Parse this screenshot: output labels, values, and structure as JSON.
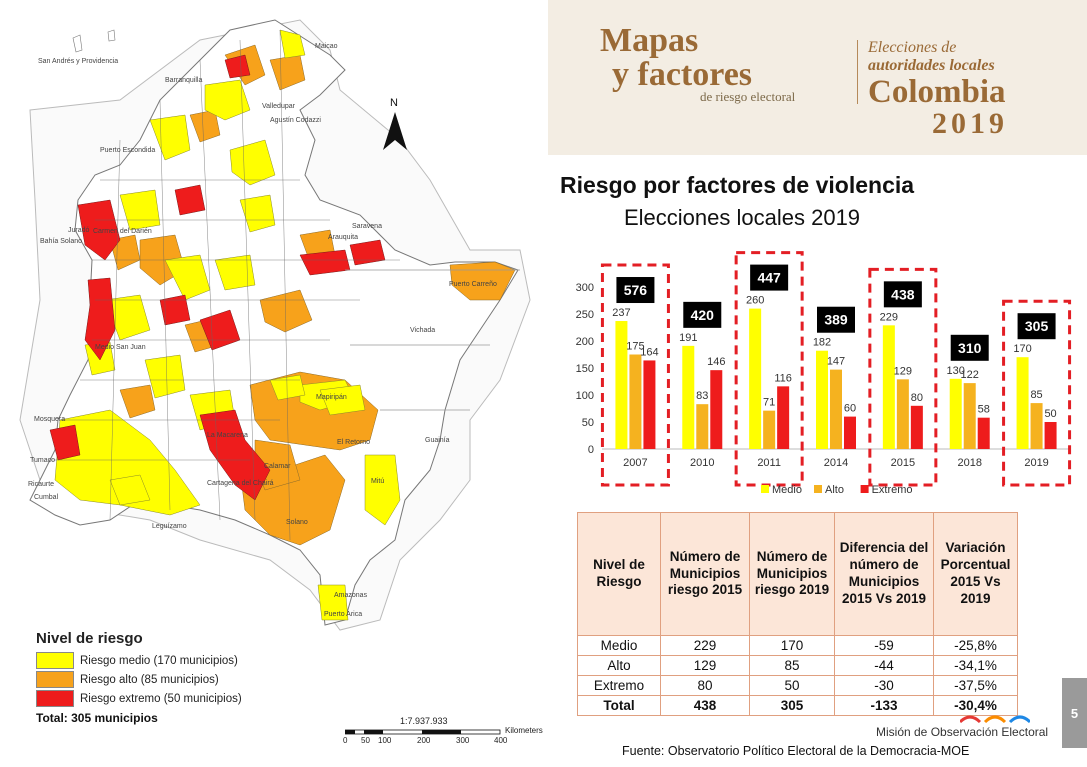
{
  "header": {
    "brand_line1": "Mapas",
    "brand_line2": "y factores",
    "brand_line3": "de riesgo electoral",
    "right_line1": "Elecciones de",
    "right_line2": "autoridades locales",
    "right_line3": "Colombia",
    "right_line4": "2019"
  },
  "map": {
    "north_label": "N",
    "scale_text": "1:7.937.933",
    "scale_unit": "Kilometers",
    "scale_ticks": [
      "0",
      "50",
      "100",
      "200",
      "300",
      "400"
    ],
    "labels": [
      "San Andrés y Providencia",
      "Maicao",
      "Valledupar",
      "Barranquilla",
      "Puerto Escondida",
      "Saravena",
      "Arauquita",
      "Puerto Carreño",
      "Vichada",
      "Guainía",
      "Mitú",
      "Amazonas",
      "Puerto Arica",
      "Solano",
      "La Macarena",
      "Mapiripán",
      "Calamar",
      "El Retorno",
      "Cartagena del Chairá",
      "Leguízamo",
      "Mosquera",
      "Cumbal",
      "Tumaco",
      "Ricaurte",
      "Bahía Solano",
      "Juradó",
      "Carmen del Darién",
      "Medio San Juan",
      "Agustín Codazzi"
    ]
  },
  "legend": {
    "title": "Nivel de riesgo",
    "items": [
      {
        "label": "Riesgo medio (170 municipios)",
        "color": "#ffff00"
      },
      {
        "label": "Riesgo alto (85 municipios)",
        "color": "#f7a21b"
      },
      {
        "label": "Riesgo extremo (50 municipios)",
        "color": "#ee1c1c"
      }
    ],
    "total": "Total: 305 municipios"
  },
  "chart_title": "Riesgo por factores de violencia",
  "chart_subtitle": "Elecciones locales 2019",
  "chart_data": {
    "type": "bar",
    "categories": [
      "2007",
      "2010",
      "2011",
      "2014",
      "2015",
      "2018",
      "2019"
    ],
    "series": [
      {
        "name": "Medio",
        "color": "#ffff00",
        "values": [
          237,
          191,
          260,
          182,
          229,
          130,
          170
        ]
      },
      {
        "name": "Alto",
        "color": "#f5b21f",
        "values": [
          175,
          83,
          71,
          147,
          129,
          122,
          85
        ]
      },
      {
        "name": "Extremo",
        "color": "#ee1c1c",
        "values": [
          164,
          146,
          116,
          60,
          80,
          58,
          50
        ]
      }
    ],
    "totals": [
      576,
      420,
      447,
      389,
      438,
      310,
      305
    ],
    "highlighted": [
      "2007",
      "2011",
      "2015",
      "2019"
    ],
    "ylim": [
      0,
      300
    ],
    "yticks": [
      "0",
      "50",
      "100",
      "150",
      "200",
      "250",
      "300"
    ],
    "legend_position": "bottom",
    "grid": false
  },
  "table": {
    "headers": [
      "Nivel de Riesgo",
      "Número de Municipios riesgo 2015",
      "Número de Municipios riesgo 2019",
      "Diferencia del número de Municipios 2015 Vs 2019",
      "Variación Porcentual 2015 Vs 2019"
    ],
    "rows": [
      [
        "Medio",
        "229",
        "170",
        "-59",
        "-25,8%"
      ],
      [
        "Alto",
        "129",
        "85",
        "-44",
        "-34,1%"
      ],
      [
        "Extremo",
        "80",
        "50",
        "-30",
        "-37,5%"
      ],
      [
        "Total",
        "438",
        "305",
        "-133",
        "-30,4%"
      ]
    ]
  },
  "source": "Fuente: Observatorio Político Electoral de la Democracia-MOE",
  "moe": "Misión de Observación Electoral",
  "page_number": "5"
}
